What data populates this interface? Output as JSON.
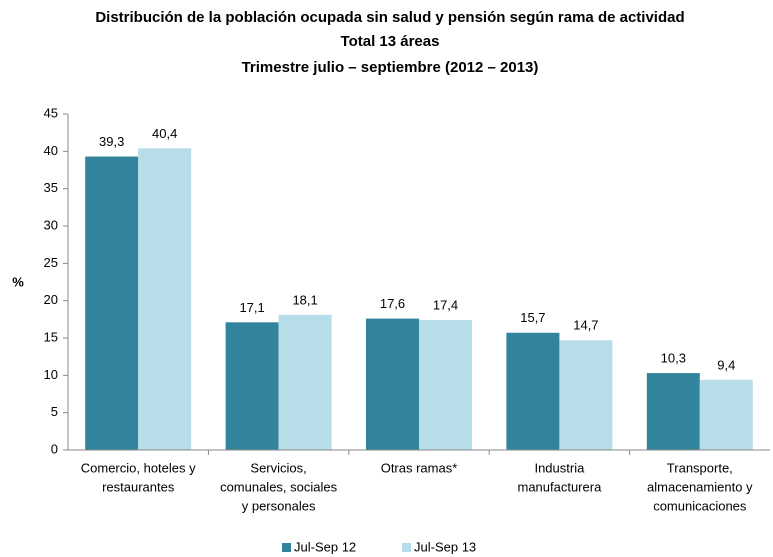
{
  "chart_data": {
    "type": "bar",
    "title": [
      "Distribución de la población ocupada sin salud y pensión según rama de actividad",
      "Total 13 áreas",
      "Trimestre julio – septiembre (2012 – 2013)"
    ],
    "y_label": "%",
    "categories": [
      [
        "Comercio, hoteles y",
        "restaurantes"
      ],
      [
        "Servicios,",
        "comunales, sociales",
        "y personales"
      ],
      [
        "Otras ramas*"
      ],
      [
        "Industria",
        "manufacturera"
      ],
      [
        "Transporte,",
        "almacenamiento y",
        "comunicaciones"
      ]
    ],
    "series": [
      {
        "name": "Jul-Sep 12",
        "color": "#31849b",
        "values": [
          39.3,
          17.1,
          17.6,
          15.7,
          10.3
        ],
        "value_labels": [
          "39,3",
          "17,1",
          "17,6",
          "15,7",
          "10,3"
        ]
      },
      {
        "name": "Jul-Sep 13",
        "color": "#b7dde8",
        "values": [
          40.4,
          18.1,
          17.4,
          14.7,
          9.4
        ],
        "value_labels": [
          "40,4",
          "18,1",
          "17,4",
          "14,7",
          "9,4"
        ]
      }
    ],
    "ylim": [
      0,
      45
    ],
    "yticks": [
      0,
      5,
      10,
      15,
      20,
      25,
      30,
      35,
      40,
      45
    ],
    "grid": false,
    "legend": "bottom"
  }
}
